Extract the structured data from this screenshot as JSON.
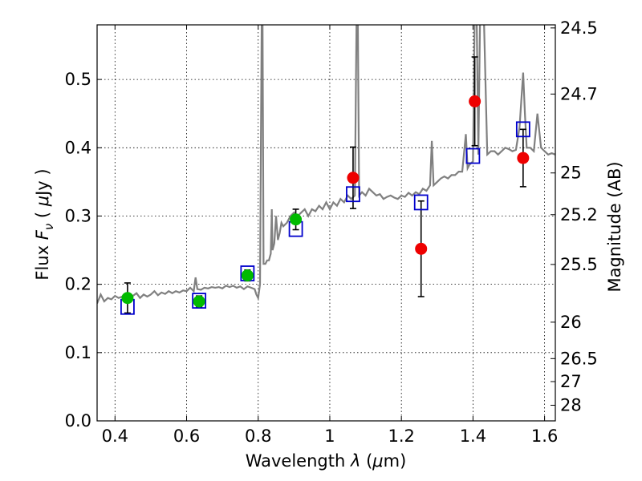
{
  "chart_data": {
    "type": "scatter",
    "xlabel": {
      "pre": "Wavelength  ",
      "lambda": "λ",
      "post": " (",
      "mu": "μ",
      "unit": "m)"
    },
    "ylabel": {
      "pre": "Flux  ",
      "F": "F",
      "nu": "ν",
      "post": "  ( ",
      "mu": "μ",
      "unit": "Jy )"
    },
    "y2label": "Magnitude (AB)",
    "xlim": [
      0.35,
      1.63
    ],
    "ylim": [
      0.0,
      0.58
    ],
    "grid": true,
    "x_ticks": [
      0.4,
      0.6,
      0.8,
      1.0,
      1.2,
      1.4,
      1.6
    ],
    "x_tick_labels": [
      "0.4",
      "0.6",
      "0.8",
      "1",
      "1.2",
      "1.4",
      "1.6"
    ],
    "y_ticks": [
      0.0,
      0.1,
      0.2,
      0.3,
      0.4,
      0.5
    ],
    "y_tick_labels": [
      "0.0",
      "0.1",
      "0.2",
      "0.3",
      "0.4",
      "0.5"
    ],
    "magnitude_ticks": [
      24.5,
      24.7,
      25,
      25.2,
      25.5,
      26,
      26.5,
      27,
      28
    ],
    "magnitude_tick_labels": [
      "24.5",
      "24.7",
      "25",
      "25.2",
      "25.5",
      "26",
      "26.5",
      "27",
      "28"
    ],
    "colors": {
      "spectrum": "#808080",
      "model_box": "#0000cc",
      "green_point": "#00bb00",
      "red_point": "#ee0000",
      "errorbar": "#000000",
      "grid": "#000000"
    },
    "spectrum": [
      [
        0.35,
        0.172
      ],
      [
        0.36,
        0.185
      ],
      [
        0.37,
        0.175
      ],
      [
        0.38,
        0.18
      ],
      [
        0.39,
        0.178
      ],
      [
        0.4,
        0.183
      ],
      [
        0.41,
        0.18
      ],
      [
        0.42,
        0.182
      ],
      [
        0.43,
        0.186
      ],
      [
        0.44,
        0.178
      ],
      [
        0.45,
        0.183
      ],
      [
        0.46,
        0.187
      ],
      [
        0.47,
        0.18
      ],
      [
        0.48,
        0.185
      ],
      [
        0.49,
        0.182
      ],
      [
        0.5,
        0.185
      ],
      [
        0.51,
        0.19
      ],
      [
        0.52,
        0.184
      ],
      [
        0.53,
        0.188
      ],
      [
        0.54,
        0.186
      ],
      [
        0.55,
        0.19
      ],
      [
        0.56,
        0.187
      ],
      [
        0.57,
        0.19
      ],
      [
        0.58,
        0.188
      ],
      [
        0.59,
        0.191
      ],
      [
        0.6,
        0.19
      ],
      [
        0.61,
        0.195
      ],
      [
        0.62,
        0.19
      ],
      [
        0.625,
        0.21
      ],
      [
        0.63,
        0.193
      ],
      [
        0.64,
        0.192
      ],
      [
        0.65,
        0.195
      ],
      [
        0.66,
        0.194
      ],
      [
        0.67,
        0.196
      ],
      [
        0.68,
        0.195
      ],
      [
        0.69,
        0.196
      ],
      [
        0.7,
        0.194
      ],
      [
        0.71,
        0.198
      ],
      [
        0.72,
        0.196
      ],
      [
        0.73,
        0.198
      ],
      [
        0.74,
        0.195
      ],
      [
        0.75,
        0.197
      ],
      [
        0.76,
        0.193
      ],
      [
        0.77,
        0.197
      ],
      [
        0.78,
        0.195
      ],
      [
        0.79,
        0.193
      ],
      [
        0.795,
        0.185
      ],
      [
        0.8,
        0.18
      ],
      [
        0.805,
        0.2
      ],
      [
        0.81,
        0.6
      ],
      [
        0.812,
        0.6
      ],
      [
        0.815,
        0.23
      ],
      [
        0.82,
        0.23
      ],
      [
        0.825,
        0.235
      ],
      [
        0.83,
        0.235
      ],
      [
        0.835,
        0.245
      ],
      [
        0.838,
        0.31
      ],
      [
        0.84,
        0.25
      ],
      [
        0.845,
        0.26
      ],
      [
        0.85,
        0.3
      ],
      [
        0.855,
        0.265
      ],
      [
        0.86,
        0.275
      ],
      [
        0.865,
        0.29
      ],
      [
        0.87,
        0.285
      ],
      [
        0.88,
        0.29
      ],
      [
        0.89,
        0.3
      ],
      [
        0.9,
        0.305
      ],
      [
        0.91,
        0.3
      ],
      [
        0.92,
        0.305
      ],
      [
        0.93,
        0.31
      ],
      [
        0.94,
        0.3
      ],
      [
        0.95,
        0.31
      ],
      [
        0.96,
        0.307
      ],
      [
        0.97,
        0.315
      ],
      [
        0.98,
        0.31
      ],
      [
        0.99,
        0.32
      ],
      [
        1.0,
        0.31
      ],
      [
        1.01,
        0.32
      ],
      [
        1.02,
        0.315
      ],
      [
        1.03,
        0.325
      ],
      [
        1.04,
        0.32
      ],
      [
        1.05,
        0.33
      ],
      [
        1.06,
        0.325
      ],
      [
        1.07,
        0.33
      ],
      [
        1.075,
        0.6
      ],
      [
        1.078,
        0.6
      ],
      [
        1.082,
        0.33
      ],
      [
        1.09,
        0.335
      ],
      [
        1.1,
        0.33
      ],
      [
        1.11,
        0.34
      ],
      [
        1.12,
        0.335
      ],
      [
        1.13,
        0.33
      ],
      [
        1.14,
        0.332
      ],
      [
        1.15,
        0.325
      ],
      [
        1.16,
        0.328
      ],
      [
        1.17,
        0.33
      ],
      [
        1.18,
        0.327
      ],
      [
        1.19,
        0.325
      ],
      [
        1.2,
        0.33
      ],
      [
        1.21,
        0.328
      ],
      [
        1.22,
        0.334
      ],
      [
        1.23,
        0.33
      ],
      [
        1.24,
        0.335
      ],
      [
        1.25,
        0.332
      ],
      [
        1.26,
        0.34
      ],
      [
        1.27,
        0.337
      ],
      [
        1.28,
        0.345
      ],
      [
        1.285,
        0.41
      ],
      [
        1.29,
        0.345
      ],
      [
        1.3,
        0.35
      ],
      [
        1.31,
        0.355
      ],
      [
        1.32,
        0.358
      ],
      [
        1.33,
        0.355
      ],
      [
        1.34,
        0.36
      ],
      [
        1.35,
        0.36
      ],
      [
        1.36,
        0.365
      ],
      [
        1.37,
        0.365
      ],
      [
        1.38,
        0.42
      ],
      [
        1.385,
        0.37
      ],
      [
        1.39,
        0.375
      ],
      [
        1.4,
        0.38
      ],
      [
        1.405,
        0.6
      ],
      [
        1.41,
        0.6
      ],
      [
        1.415,
        0.39
      ],
      [
        1.42,
        0.6
      ],
      [
        1.43,
        0.6
      ],
      [
        1.44,
        0.39
      ],
      [
        1.45,
        0.395
      ],
      [
        1.46,
        0.395
      ],
      [
        1.47,
        0.39
      ],
      [
        1.48,
        0.395
      ],
      [
        1.49,
        0.4
      ],
      [
        1.5,
        0.398
      ],
      [
        1.51,
        0.395
      ],
      [
        1.52,
        0.397
      ],
      [
        1.53,
        0.43
      ],
      [
        1.54,
        0.51
      ],
      [
        1.545,
        0.45
      ],
      [
        1.55,
        0.4
      ],
      [
        1.56,
        0.4
      ],
      [
        1.57,
        0.395
      ],
      [
        1.58,
        0.45
      ],
      [
        1.59,
        0.4
      ],
      [
        1.6,
        0.395
      ],
      [
        1.61,
        0.39
      ],
      [
        1.62,
        0.392
      ],
      [
        1.63,
        0.39
      ]
    ],
    "model_points": [
      {
        "x": 0.435,
        "y": 0.167
      },
      {
        "x": 0.635,
        "y": 0.176
      },
      {
        "x": 0.77,
        "y": 0.216
      },
      {
        "x": 0.905,
        "y": 0.281
      },
      {
        "x": 1.065,
        "y": 0.332
      },
      {
        "x": 1.255,
        "y": 0.32
      },
      {
        "x": 1.4,
        "y": 0.388
      },
      {
        "x": 1.54,
        "y": 0.427
      }
    ],
    "green_points": [
      {
        "x": 0.435,
        "y": 0.18,
        "err": 0.022
      },
      {
        "x": 0.635,
        "y": 0.175,
        "err": 0.008
      },
      {
        "x": 0.77,
        "y": 0.213,
        "err": 0.008
      },
      {
        "x": 0.905,
        "y": 0.295,
        "err": 0.015
      }
    ],
    "red_points": [
      {
        "x": 1.065,
        "y": 0.356,
        "err": 0.045
      },
      {
        "x": 1.255,
        "y": 0.252,
        "err": 0.07
      },
      {
        "x": 1.405,
        "y": 0.468,
        "err": 0.065
      },
      {
        "x": 1.54,
        "y": 0.385,
        "err": 0.042
      }
    ]
  }
}
